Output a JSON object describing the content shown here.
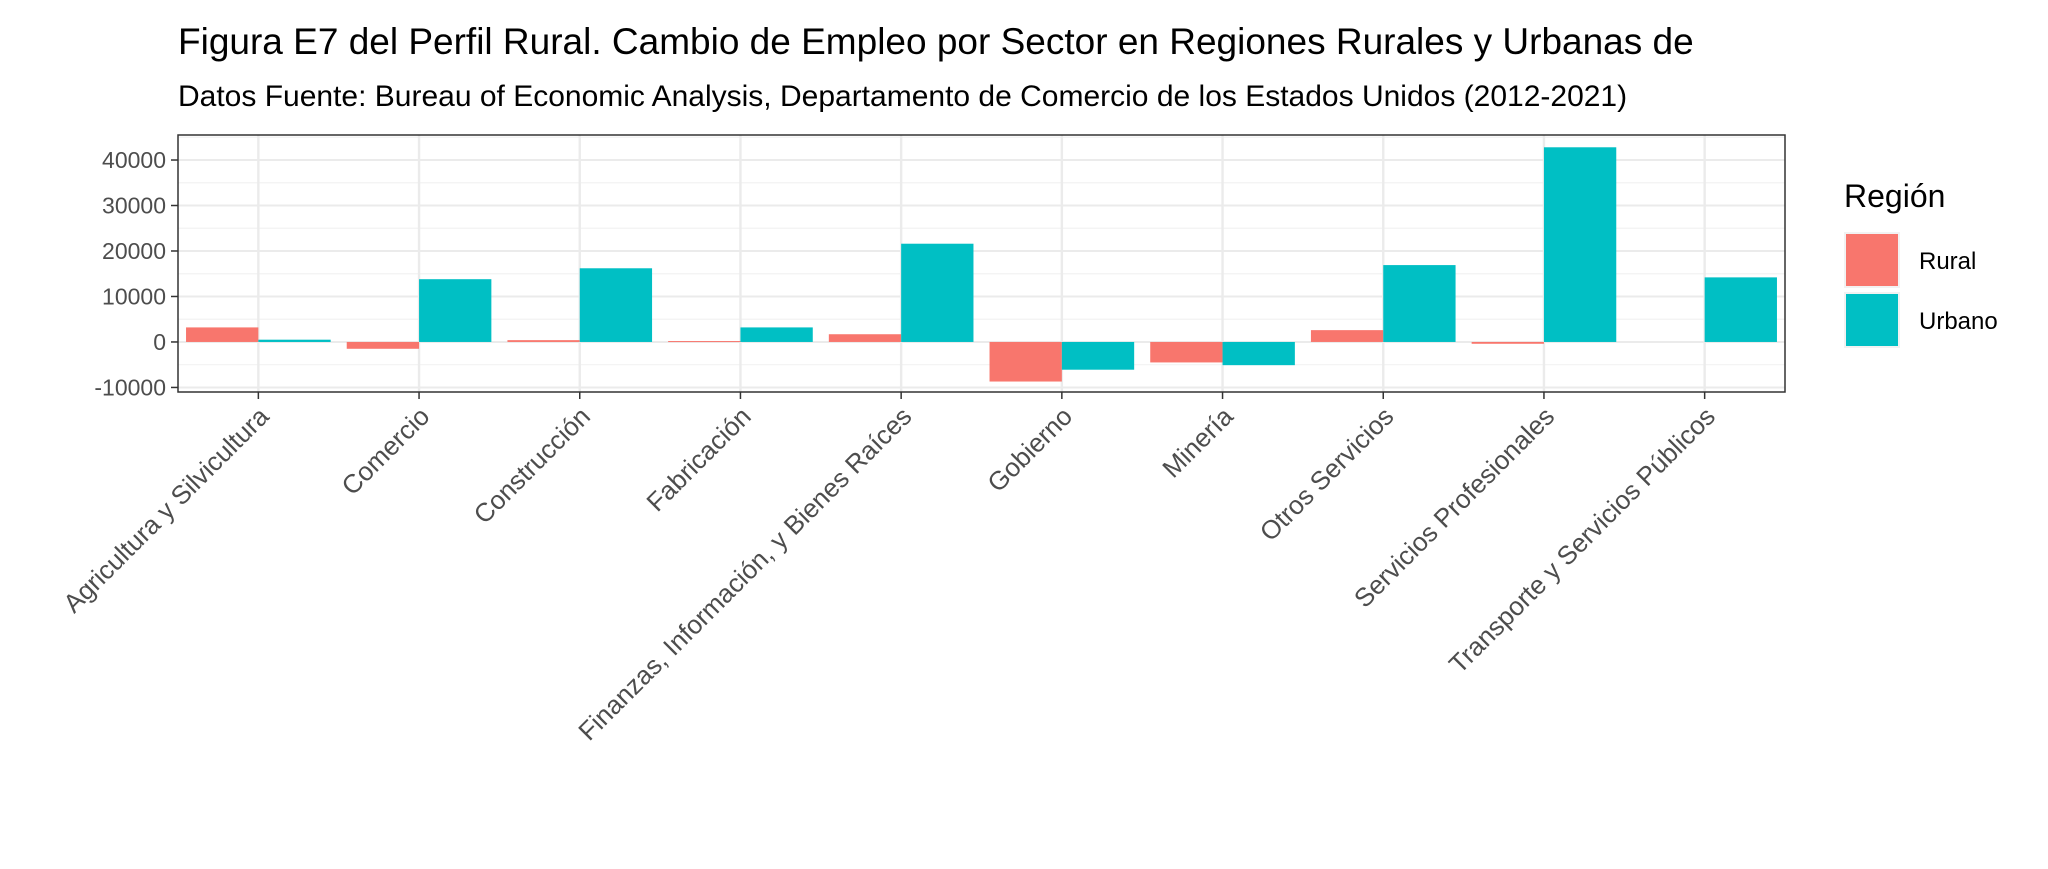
{
  "chart_data": {
    "type": "bar",
    "title": "Figura E7 del Perfil Rural. Cambio de Empleo por Sector en Regiones Rurales y Urbanas de",
    "subtitle": "Datos Fuente: Bureau of Economic Analysis, Departamento de Comercio de los Estados Unidos (2012-2021)",
    "xlabel": "",
    "ylabel": "",
    "categories": [
      "Agricultura y Silvicultura",
      "Comercio",
      "Construcción",
      "Fabricación",
      "Finanzas, Información, y Bienes Raíces",
      "Gobierno",
      "Minería",
      "Otros Servicios",
      "Servicios Profesionales",
      "Transporte y Servicios Públicos"
    ],
    "series": [
      {
        "name": "Rural",
        "color": "#F8766D",
        "values": [
          3200,
          -1500,
          400,
          200,
          1700,
          -8700,
          -4500,
          2600,
          -400,
          0
        ]
      },
      {
        "name": "Urbano",
        "color": "#00BFC4",
        "values": [
          500,
          13800,
          16200,
          3200,
          21600,
          -6100,
          -5100,
          16900,
          42800,
          14200
        ]
      }
    ],
    "ylim": [
      -11000,
      45500
    ],
    "yticks": [
      -10000,
      0,
      10000,
      20000,
      30000,
      40000
    ],
    "ytick_labels": [
      "-10000",
      "0",
      "10000",
      "20000",
      "30000",
      "40000"
    ],
    "legend": {
      "title": "Región",
      "position": "right"
    },
    "grid": true
  }
}
